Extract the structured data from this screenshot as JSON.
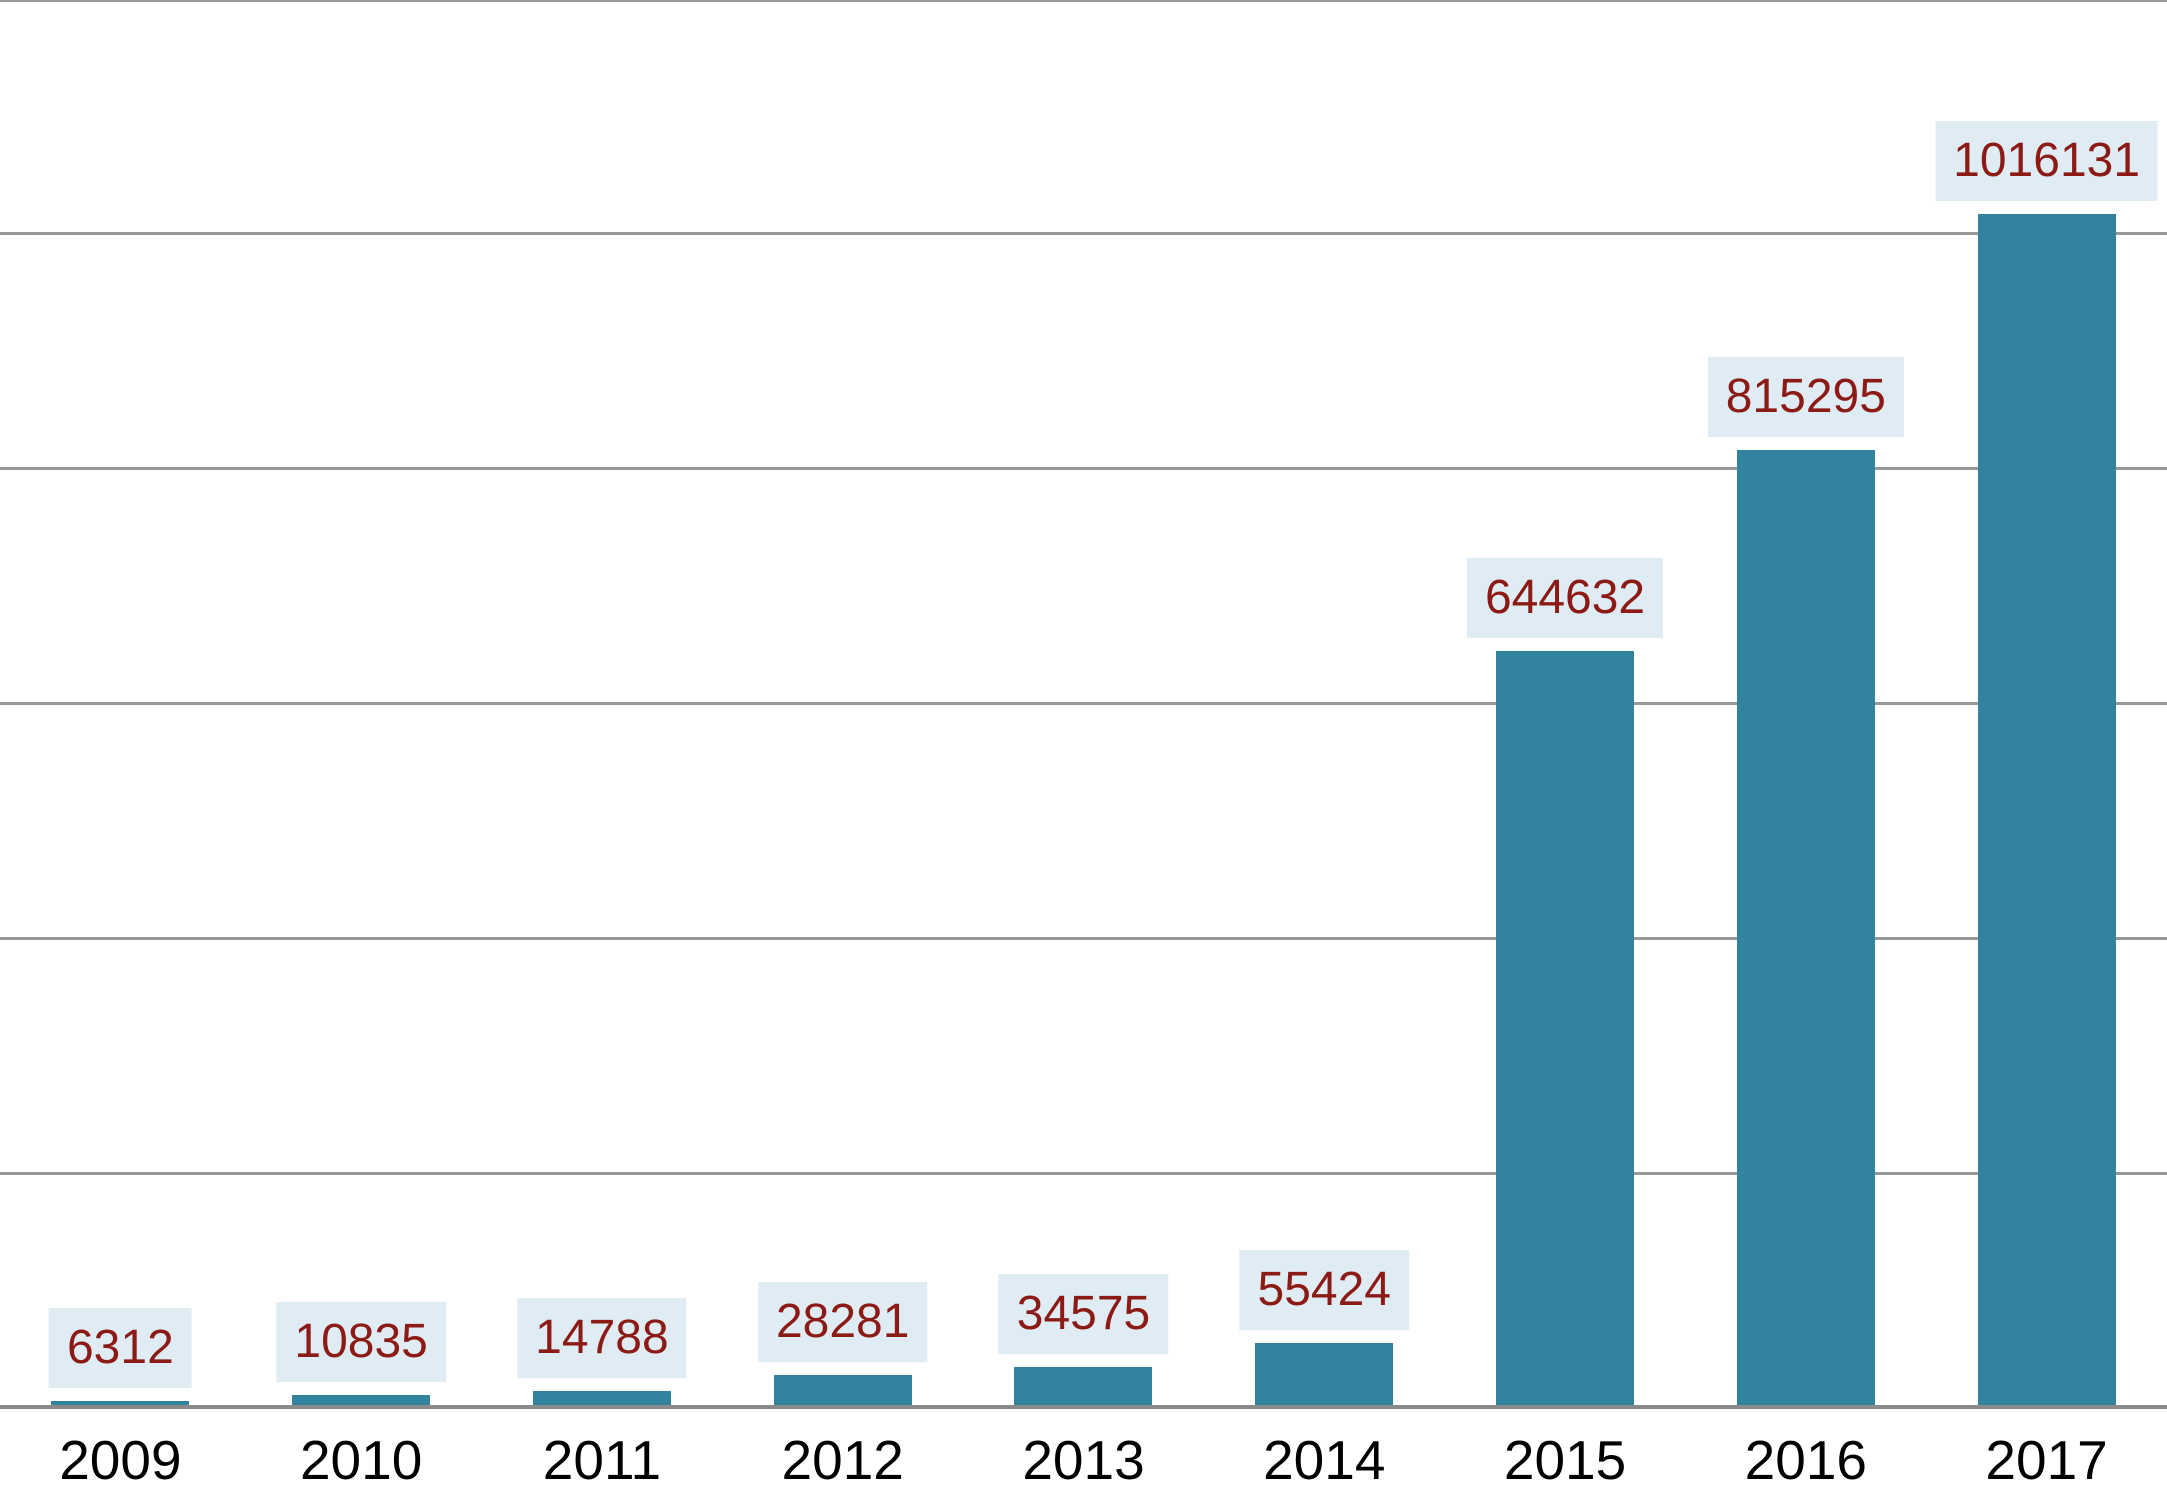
{
  "chart_data": {
    "type": "bar",
    "categories": [
      "2009",
      "2010",
      "2011",
      "2012",
      "2013",
      "2014",
      "2015",
      "2016",
      "2017"
    ],
    "values": [
      6312,
      10835,
      14788,
      28281,
      34575,
      55424,
      644632,
      815295,
      1016131
    ],
    "data_labels": [
      "6312",
      "10835",
      "14788",
      "28281",
      "34575",
      "55424",
      "644632",
      "815295",
      "1016131"
    ],
    "title": "",
    "xlabel": "",
    "ylabel": "",
    "ylim": [
      0,
      1200000
    ],
    "gridline_interval": 200000,
    "grid": true,
    "y_tick_labels_visible": false,
    "legend_position": "none",
    "colors": {
      "bar": "#31839e",
      "value_label_text": "#8c1a15",
      "value_label_background": "#dfecf3",
      "year_label_text": "#000000",
      "gridline": "#999999",
      "axis_line": "#8a8a8a",
      "background": "#ffffff"
    }
  }
}
